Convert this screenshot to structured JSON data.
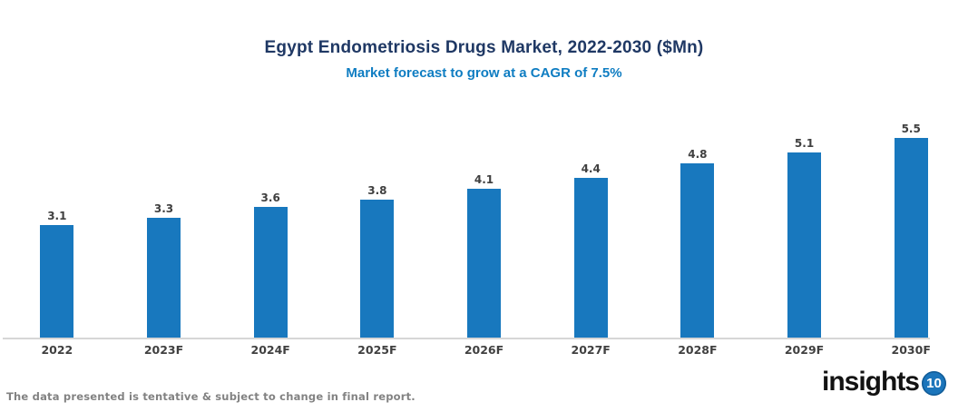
{
  "header": {
    "title": "Egypt Endometriosis Drugs Market, 2022-2030 ($Mn)",
    "subtitle": "Market forecast to grow at a CAGR of 7.5%"
  },
  "footer": {
    "note": "The data presented is tentative & subject to change in final report.",
    "logo_text": "insights",
    "logo_badge": "10"
  },
  "colors": {
    "title": "#1F3864",
    "subtitle": "#0F7DC2",
    "bar": "#1878BE",
    "label": "#404040",
    "axis": "#D6D6D6",
    "footer": "#828282",
    "logo_text": "#121212",
    "logo_badge": "#1B75BB"
  },
  "chart_data": {
    "type": "bar",
    "categories": [
      "2022",
      "2023F",
      "2024F",
      "2025F",
      "2026F",
      "2027F",
      "2028F",
      "2029F",
      "2030F"
    ],
    "values": [
      3.1,
      3.3,
      3.6,
      3.8,
      4.1,
      4.4,
      4.8,
      5.1,
      5.5
    ],
    "title": "Egypt Endometriosis Drugs Market, 2022-2030 ($Mn)",
    "subtitle": "Market forecast to grow at a CAGR of 7.5%",
    "xlabel": "",
    "ylabel": "",
    "ylim": [
      0,
      6.35
    ],
    "grid": false,
    "legend": false,
    "data_labels": true,
    "value_label_format": "one_decimal"
  }
}
